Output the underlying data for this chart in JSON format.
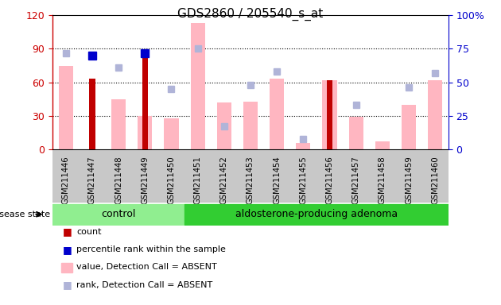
{
  "title": "GDS2860 / 205540_s_at",
  "samples": [
    "GSM211446",
    "GSM211447",
    "GSM211448",
    "GSM211449",
    "GSM211450",
    "GSM211451",
    "GSM211452",
    "GSM211453",
    "GSM211454",
    "GSM211455",
    "GSM211456",
    "GSM211457",
    "GSM211458",
    "GSM211459",
    "GSM211460"
  ],
  "value_absent": [
    75,
    0,
    45,
    30,
    28,
    113,
    42,
    43,
    63,
    6,
    62,
    29,
    7,
    40,
    62
  ],
  "rank_absent": [
    72,
    0,
    61,
    0,
    45,
    75,
    17,
    48,
    58,
    8,
    0,
    33,
    0,
    46,
    57
  ],
  "count": [
    0,
    63,
    0,
    85,
    0,
    0,
    0,
    0,
    0,
    0,
    62,
    0,
    0,
    0,
    0
  ],
  "percentile_rank": [
    0,
    70,
    0,
    72,
    0,
    0,
    0,
    0,
    0,
    0,
    0,
    0,
    0,
    0,
    0
  ],
  "left_ylim": [
    0,
    120
  ],
  "right_ylim": [
    0,
    100
  ],
  "left_yticks": [
    0,
    30,
    60,
    90,
    120
  ],
  "right_yticks": [
    0,
    25,
    50,
    75,
    100
  ],
  "color_count": "#c00000",
  "color_percentile": "#0000cc",
  "color_value_absent": "#ffb6c1",
  "color_rank_absent": "#b0b4d8",
  "color_control_bg": "#90ee90",
  "color_adenoma_bg": "#32cd32",
  "color_axis_left": "#cc0000",
  "color_axis_right": "#0000cc",
  "color_tick_bg": "#c8c8c8",
  "n_control": 5,
  "n_total": 15,
  "disease_state_label": "disease state",
  "control_label": "control",
  "adenoma_label": "aldosterone-producing adenoma",
  "legend": [
    {
      "color": "#c00000",
      "style": "square",
      "label": "count"
    },
    {
      "color": "#0000cc",
      "style": "square",
      "label": "percentile rank within the sample"
    },
    {
      "color": "#ffb6c1",
      "style": "rect",
      "label": "value, Detection Call = ABSENT"
    },
    {
      "color": "#b0b4d8",
      "style": "square",
      "label": "rank, Detection Call = ABSENT"
    }
  ]
}
